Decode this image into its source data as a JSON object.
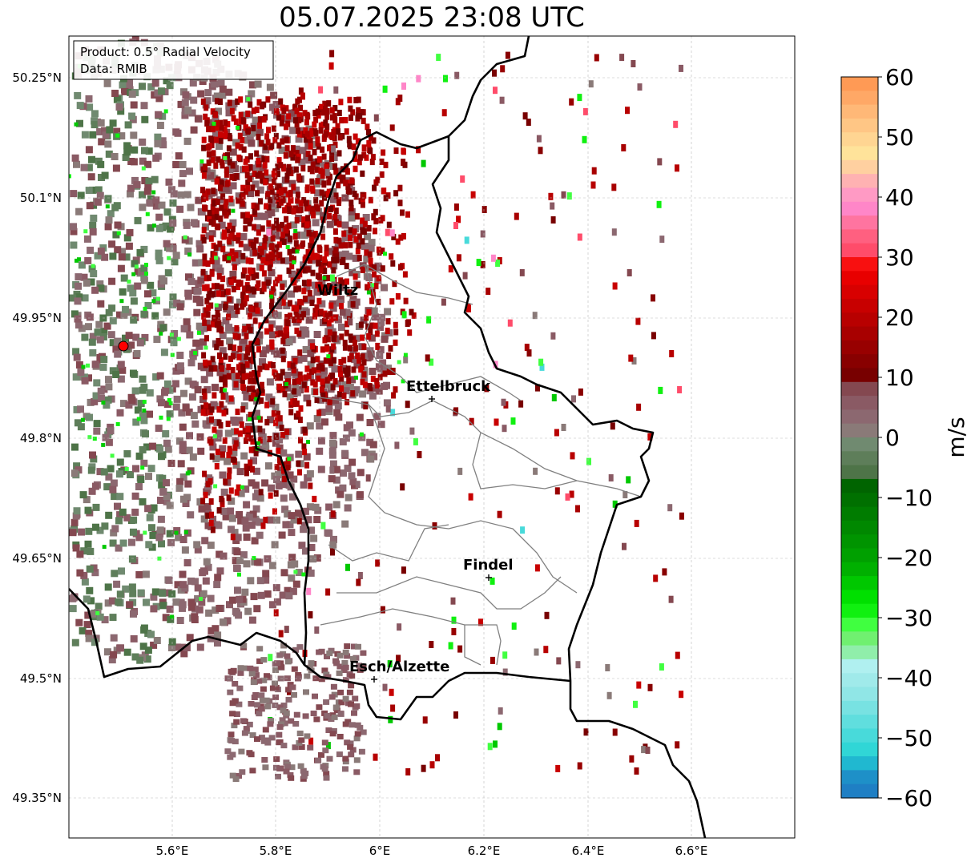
{
  "title": "05.07.2025 23:08 UTC",
  "info_box": {
    "product": "Product: 0.5° Radial Velocity",
    "data_source": "Data: RMIB"
  },
  "axes": {
    "lat_ticks": [
      "50.25°N",
      "50.1°N",
      "49.95°N",
      "49.8°N",
      "49.65°N",
      "49.5°N",
      "49.35°N"
    ],
    "lon_ticks": [
      "5.6°E",
      "5.8°E",
      "6°E",
      "6.2°E",
      "6.4°E",
      "6.6°E"
    ]
  },
  "places": [
    {
      "name": "Wiltz",
      "marker": false
    },
    {
      "name": "Ettelbruck",
      "marker": true
    },
    {
      "name": "Findel",
      "marker": true
    },
    {
      "name": "Esch/Alzette",
      "marker": true
    }
  ],
  "radar_site_color": "#ff0000",
  "colorbar": {
    "label": "m/s",
    "ticks": [
      "60",
      "50",
      "40",
      "30",
      "20",
      "10",
      "0",
      "−10",
      "−20",
      "−30",
      "−40",
      "−50",
      "−60"
    ],
    "colors_top_to_bottom": [
      "#ff9a55",
      "#ffa866",
      "#ffb877",
      "#ffc685",
      "#ffd592",
      "#ffe39a",
      "#ffd0a0",
      "#ffb2b2",
      "#ff9ac4",
      "#ff86c8",
      "#ff74a0",
      "#ff6080",
      "#ff4c6a",
      "#f81010",
      "#e80000",
      "#d80000",
      "#c80000",
      "#b80000",
      "#a80000",
      "#980000",
      "#880000",
      "#780000",
      "#844850",
      "#8a5a64",
      "#8c6870",
      "#8a7a78",
      "#708a70",
      "#5e7e5a",
      "#4e7448",
      "#006400",
      "#007000",
      "#007c00",
      "#008800",
      "#009400",
      "#00a000",
      "#00b000",
      "#00c800",
      "#00e000",
      "#10f010",
      "#40ff40",
      "#70f070",
      "#90eeaa",
      "#b0f0f0",
      "#a0eaea",
      "#90e6e6",
      "#78e2e2",
      "#60dede",
      "#48dada",
      "#30d6d6",
      "#20b8d0",
      "#1e90c8",
      "#1f7fc4"
    ]
  }
}
